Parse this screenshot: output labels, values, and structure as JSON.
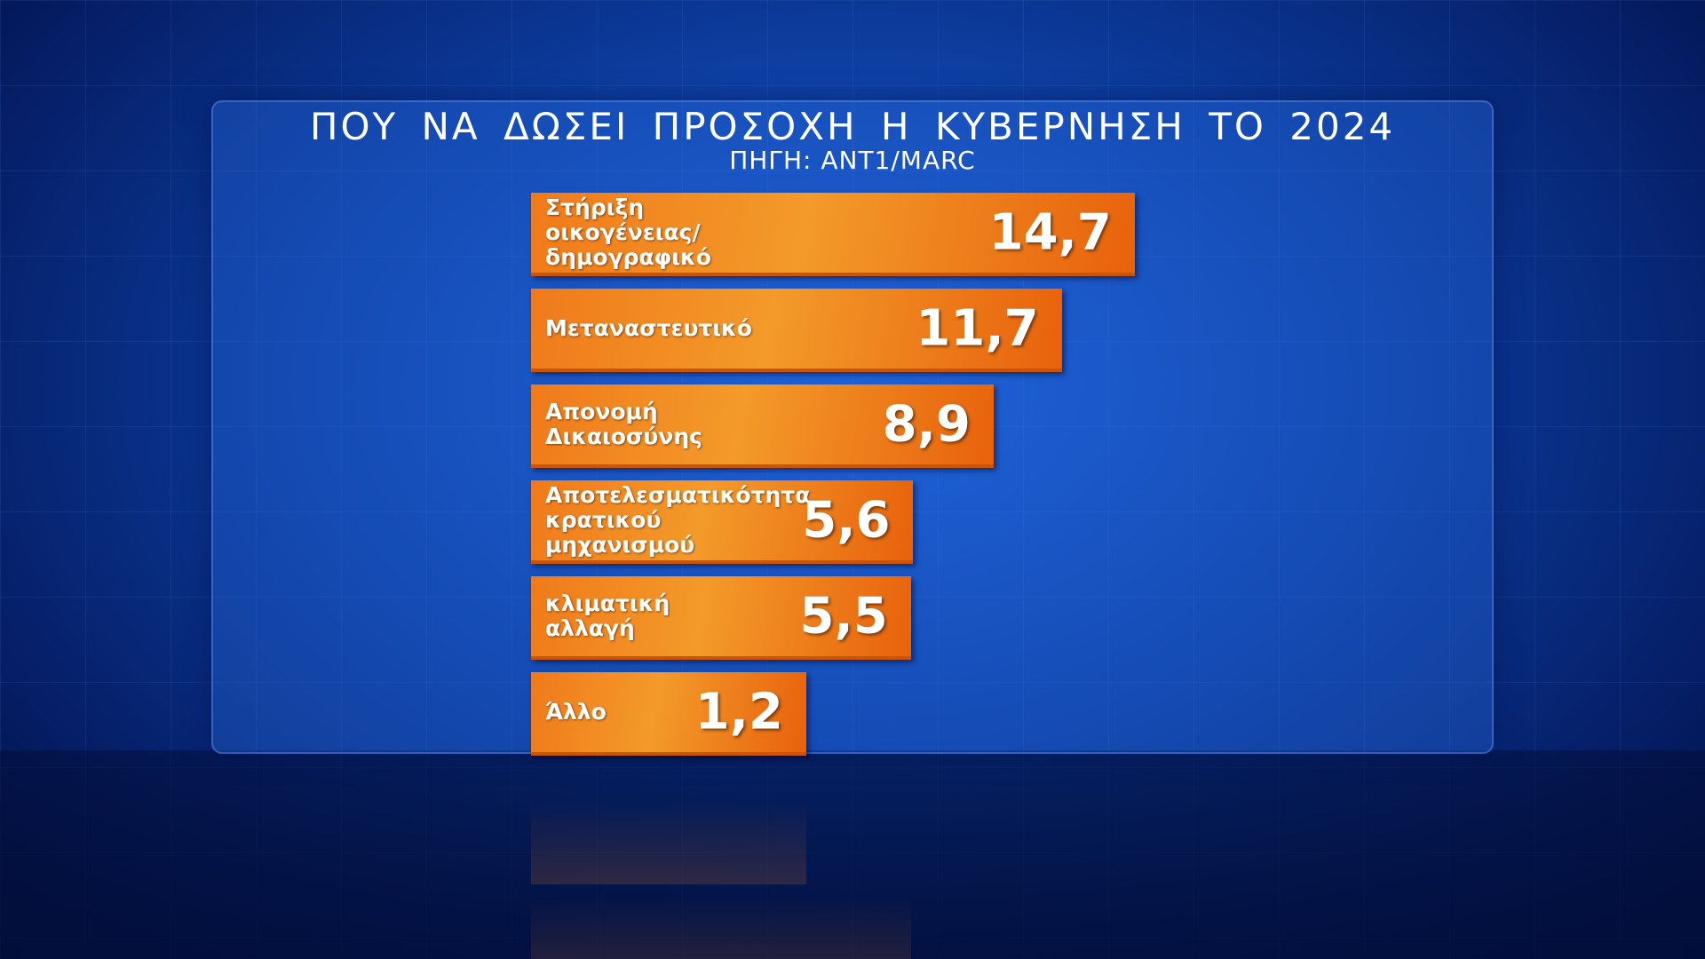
{
  "chart_data": {
    "type": "bar",
    "orientation": "horizontal",
    "title": "ΠΟΥ ΝΑ ΔΩΣΕΙ ΠΡΟΣΟΧΗ Η ΚΥΒΕΡΝΗΣΗ ΤΟ 2024",
    "subtitle": "ΠΗΓΗ: ANT1/MARC",
    "categories": [
      "Στήριξη\nοικογένειας/\nδημογραφικό",
      "Μεταναστευτικό",
      "Απονομή\nΔικαιοσύνης",
      "Αποτελεσματικότητα\nκρατικού\nμηχανισμού",
      "κλιματική\nαλλαγή",
      "Άλλο"
    ],
    "values": [
      14.7,
      11.7,
      8.9,
      5.6,
      5.5,
      1.2
    ],
    "value_labels": [
      "14,7",
      "11,7",
      "8,9",
      "5,6",
      "5,5",
      "1,2"
    ],
    "color": "#f07a1a"
  }
}
